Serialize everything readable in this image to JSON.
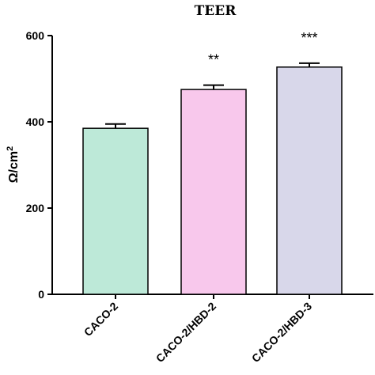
{
  "chart_data": {
    "type": "bar",
    "title": "TEER",
    "xlabel": "",
    "ylabel_main": "Ω/cm",
    "ylabel_sup": "2",
    "ylim": [
      0,
      600
    ],
    "yticks": [
      "0",
      "200",
      "400",
      "600"
    ],
    "categories": [
      "CACO-2",
      "CACO-2/HBD-2",
      "CACO-2/HBD-3"
    ],
    "values": [
      385,
      475,
      527
    ],
    "errors": [
      10,
      10,
      9
    ],
    "significance": [
      "",
      "**",
      "***"
    ],
    "colors": [
      "#bde9d8",
      "#f8c8ec",
      "#d8d7ea"
    ],
    "grid": false,
    "legend": "none"
  }
}
